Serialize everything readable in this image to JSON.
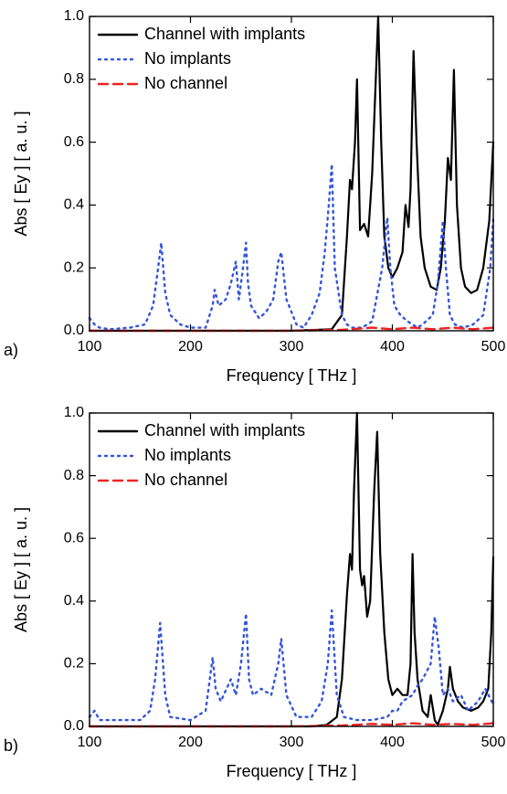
{
  "chart_data": [
    {
      "type": "line",
      "panel_label": "a)",
      "xlabel": "Frequency [ THz ]",
      "ylabel": "Abs [ Ey ] [ a. u. ]",
      "xlim": [
        100,
        500
      ],
      "xticks": [
        100,
        200,
        300,
        400,
        500
      ],
      "ylim": [
        0,
        1
      ],
      "yticks": [
        {
          "value": 0,
          "label": "0.0"
        },
        {
          "value": 0.2,
          "label": "0.2"
        },
        {
          "value": 0.4,
          "label": "0.4"
        },
        {
          "value": 0.6,
          "label": "0.6"
        },
        {
          "value": 0.8,
          "label": "0.8"
        },
        {
          "value": 1,
          "label": "1.0"
        }
      ],
      "legend": "upper-left",
      "series": [
        {
          "name": "Channel with implants",
          "color": "#000000",
          "style": "solid",
          "x": [
            100,
            300,
            340,
            350,
            355,
            358,
            360,
            363,
            365,
            368,
            372,
            376,
            380,
            383,
            386,
            389,
            392,
            396,
            400,
            405,
            410,
            413,
            416,
            418,
            421,
            424,
            428,
            432,
            438,
            444,
            448,
            452,
            455,
            458,
            461,
            464,
            468,
            472,
            478,
            484,
            490,
            496,
            500
          ],
          "values": [
            0,
            0,
            0.005,
            0.05,
            0.3,
            0.48,
            0.45,
            0.6,
            0.8,
            0.32,
            0.34,
            0.3,
            0.5,
            0.75,
            1.0,
            0.6,
            0.3,
            0.2,
            0.17,
            0.2,
            0.25,
            0.4,
            0.33,
            0.45,
            0.89,
            0.6,
            0.3,
            0.2,
            0.14,
            0.13,
            0.2,
            0.35,
            0.55,
            0.48,
            0.83,
            0.4,
            0.2,
            0.14,
            0.12,
            0.13,
            0.2,
            0.35,
            0.6
          ]
        },
        {
          "name": "No implants",
          "color": "#3355dd",
          "style": "dot",
          "x": [
            100,
            105,
            110,
            120,
            140,
            155,
            163,
            168,
            171,
            175,
            180,
            190,
            200,
            215,
            222,
            224,
            228,
            235,
            240,
            245,
            248,
            252,
            255,
            257,
            260,
            268,
            275,
            282,
            287,
            290,
            295,
            305,
            312,
            320,
            328,
            333,
            337,
            340,
            343,
            350,
            355,
            360,
            370,
            380,
            390,
            395,
            398,
            402,
            408,
            415,
            420,
            425,
            430,
            440,
            445,
            450,
            453,
            457,
            462,
            470,
            480,
            490,
            497,
            500
          ],
          "values": [
            0.04,
            0.02,
            0.01,
            0.005,
            0.01,
            0.02,
            0.08,
            0.2,
            0.28,
            0.12,
            0.05,
            0.02,
            0.01,
            0.01,
            0.08,
            0.13,
            0.08,
            0.1,
            0.15,
            0.22,
            0.1,
            0.2,
            0.28,
            0.15,
            0.08,
            0.04,
            0.06,
            0.1,
            0.22,
            0.25,
            0.1,
            0.02,
            0.01,
            0.05,
            0.12,
            0.25,
            0.4,
            0.53,
            0.2,
            0.05,
            0.02,
            0.01,
            0.01,
            0.03,
            0.2,
            0.36,
            0.2,
            0.08,
            0.05,
            0.03,
            0.02,
            0.01,
            0.02,
            0.05,
            0.15,
            0.35,
            0.2,
            0.05,
            0.02,
            0.01,
            0.02,
            0.05,
            0.2,
            0.36
          ]
        },
        {
          "name": "No channel",
          "color": "#ee2222",
          "style": "dash",
          "x": [
            100,
            200,
            300,
            350,
            380,
            400,
            420,
            440,
            460,
            480,
            500
          ],
          "values": [
            0,
            0,
            0,
            0.003,
            0.01,
            0.005,
            0.01,
            0.005,
            0.01,
            0.005,
            0.01
          ]
        }
      ]
    },
    {
      "type": "line",
      "panel_label": "b)",
      "xlabel": "Frequency [ THz ]",
      "ylabel": "Abs [ Ey ] [ a. u. ]",
      "xlim": [
        100,
        500
      ],
      "xticks": [
        100,
        200,
        300,
        400,
        500
      ],
      "ylim": [
        0,
        1
      ],
      "yticks": [
        {
          "value": 0,
          "label": "0.0"
        },
        {
          "value": 0.2,
          "label": "0.2"
        },
        {
          "value": 0.4,
          "label": "0.4"
        },
        {
          "value": 0.6,
          "label": "0.6"
        },
        {
          "value": 0.8,
          "label": "0.8"
        },
        {
          "value": 1,
          "label": "1.0"
        }
      ],
      "legend": "upper-left",
      "series": [
        {
          "name": "Channel with implants",
          "color": "#000000",
          "style": "solid",
          "x": [
            100,
            320,
            335,
            345,
            350,
            355,
            358,
            360,
            362,
            365,
            368,
            370,
            372,
            375,
            378,
            382,
            385,
            388,
            392,
            396,
            400,
            405,
            410,
            415,
            418,
            420,
            422,
            425,
            430,
            435,
            438,
            442,
            445,
            450,
            455,
            457,
            460,
            465,
            470,
            478,
            485,
            490,
            495,
            498,
            500
          ],
          "values": [
            0,
            0,
            0.005,
            0.03,
            0.15,
            0.42,
            0.55,
            0.5,
            0.75,
            1.0,
            0.5,
            0.45,
            0.48,
            0.35,
            0.4,
            0.75,
            0.94,
            0.55,
            0.3,
            0.15,
            0.1,
            0.12,
            0.1,
            0.1,
            0.2,
            0.55,
            0.3,
            0.15,
            0.05,
            0.03,
            0.1,
            0.02,
            0.005,
            0.05,
            0.12,
            0.19,
            0.12,
            0.08,
            0.06,
            0.05,
            0.06,
            0.08,
            0.12,
            0.3,
            0.54
          ]
        },
        {
          "name": "No implants",
          "color": "#3355dd",
          "style": "dot",
          "x": [
            100,
            105,
            110,
            130,
            150,
            160,
            165,
            170,
            175,
            180,
            200,
            215,
            222,
            225,
            230,
            240,
            245,
            250,
            255,
            258,
            262,
            270,
            280,
            287,
            290,
            295,
            305,
            320,
            330,
            336,
            340,
            345,
            352,
            365,
            380,
            395,
            400,
            405,
            410,
            420,
            425,
            430,
            438,
            442,
            446,
            450,
            455,
            460,
            468,
            475,
            485,
            492,
            500
          ],
          "values": [
            0.03,
            0.05,
            0.02,
            0.02,
            0.02,
            0.05,
            0.15,
            0.33,
            0.1,
            0.03,
            0.02,
            0.05,
            0.22,
            0.12,
            0.08,
            0.15,
            0.1,
            0.2,
            0.36,
            0.15,
            0.1,
            0.12,
            0.1,
            0.2,
            0.28,
            0.1,
            0.03,
            0.03,
            0.08,
            0.2,
            0.37,
            0.1,
            0.03,
            0.02,
            0.02,
            0.03,
            0.05,
            0.05,
            0.08,
            0.1,
            0.13,
            0.15,
            0.2,
            0.35,
            0.25,
            0.1,
            0.12,
            0.08,
            0.1,
            0.05,
            0.08,
            0.12,
            0.07
          ]
        },
        {
          "name": "No channel",
          "color": "#ee2222",
          "style": "dash",
          "x": [
            100,
            200,
            300,
            350,
            380,
            400,
            420,
            440,
            460,
            480,
            500
          ],
          "values": [
            0,
            0,
            0,
            0.003,
            0.008,
            0.005,
            0.01,
            0.005,
            0.008,
            0.005,
            0.01
          ]
        }
      ]
    }
  ]
}
